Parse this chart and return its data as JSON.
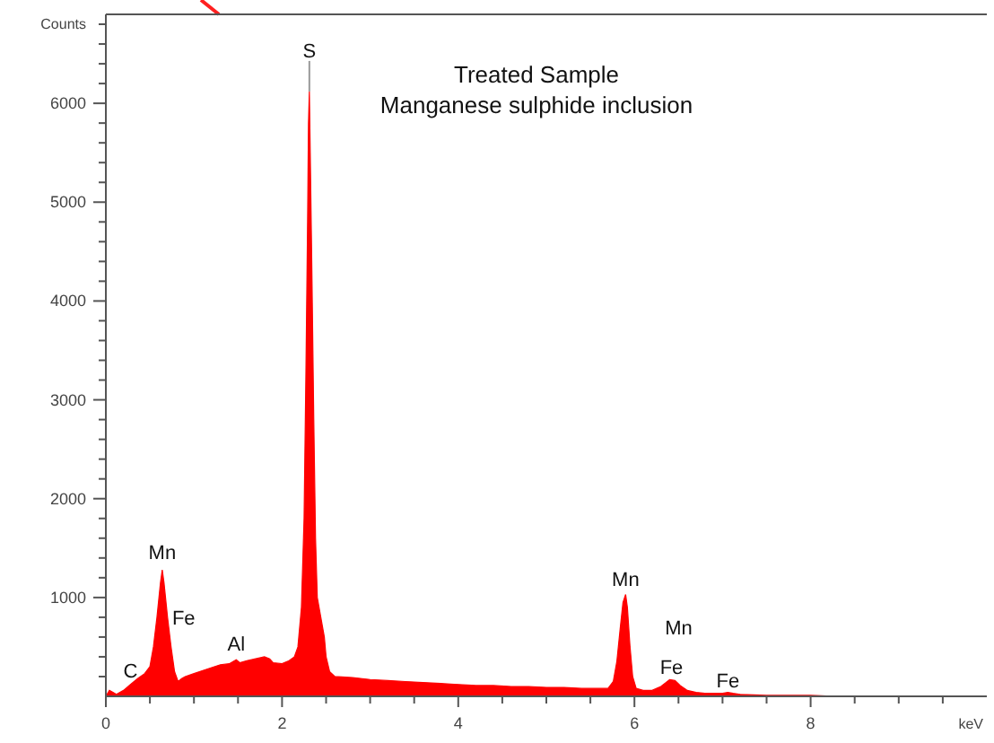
{
  "chart_data": {
    "type": "area",
    "title": "Treated Sample",
    "subtitle": "Manganese sulphide inclusion",
    "xlabel": "keV",
    "ylabel": "Counts",
    "xlim": [
      0,
      10
    ],
    "ylim": [
      0,
      6900
    ],
    "xticks": [
      0,
      {
        "value": 0.5,
        "label": null
      },
      {
        "value": 1,
        "label": null
      },
      {
        "value": 1.5,
        "label": null
      },
      2,
      {
        "value": 2.5,
        "label": null
      },
      {
        "value": 3,
        "label": null
      },
      {
        "value": 3.5,
        "label": null
      },
      4,
      {
        "value": 4.5,
        "label": null
      },
      {
        "value": 5,
        "label": null
      },
      {
        "value": 5.5,
        "label": null
      },
      6,
      {
        "value": 6.5,
        "label": null
      },
      {
        "value": 7,
        "label": null
      },
      {
        "value": 7.5,
        "label": null
      },
      8,
      {
        "value": 8.5,
        "label": null
      },
      {
        "value": 9,
        "label": null
      },
      {
        "value": 9.5,
        "label": null
      }
    ],
    "yticks": [
      {
        "value": 200,
        "label": null
      },
      {
        "value": 400,
        "label": null
      },
      {
        "value": 600,
        "label": null
      },
      {
        "value": 800,
        "label": null
      },
      1000,
      {
        "value": 1200,
        "label": null
      },
      {
        "value": 1400,
        "label": null
      },
      {
        "value": 1600,
        "label": null
      },
      {
        "value": 1800,
        "label": null
      },
      2000,
      {
        "value": 2200,
        "label": null
      },
      {
        "value": 2400,
        "label": null
      },
      {
        "value": 2600,
        "label": null
      },
      {
        "value": 2800,
        "label": null
      },
      3000,
      {
        "value": 3200,
        "label": null
      },
      {
        "value": 3400,
        "label": null
      },
      {
        "value": 3600,
        "label": null
      },
      {
        "value": 3800,
        "label": null
      },
      4000,
      {
        "value": 4200,
        "label": null
      },
      {
        "value": 4400,
        "label": null
      },
      {
        "value": 4600,
        "label": null
      },
      {
        "value": 4800,
        "label": null
      },
      5000,
      {
        "value": 5200,
        "label": null
      },
      {
        "value": 5400,
        "label": null
      },
      {
        "value": 5600,
        "label": null
      },
      {
        "value": 5800,
        "label": null
      },
      6000,
      {
        "value": 6200,
        "label": null
      },
      {
        "value": 6400,
        "label": null
      },
      {
        "value": 6600,
        "label": null
      },
      {
        "value": 6800,
        "label": null
      }
    ],
    "grid": false,
    "x": [
      0,
      0.04,
      0.08,
      0.12,
      0.2,
      0.28,
      0.36,
      0.44,
      0.5,
      0.54,
      0.58,
      0.62,
      0.64,
      0.66,
      0.7,
      0.74,
      0.78,
      0.82,
      0.86,
      0.9,
      1.0,
      1.1,
      1.2,
      1.3,
      1.4,
      1.48,
      1.52,
      1.6,
      1.7,
      1.8,
      1.86,
      1.9,
      2.0,
      2.08,
      2.14,
      2.18,
      2.22,
      2.25,
      2.27,
      2.29,
      2.3,
      2.31,
      2.32,
      2.34,
      2.36,
      2.38,
      2.4,
      2.44,
      2.48,
      2.5,
      2.54,
      2.6,
      2.8,
      3.0,
      3.2,
      3.4,
      3.6,
      3.8,
      4.0,
      4.2,
      4.4,
      4.6,
      4.8,
      5.0,
      5.2,
      5.4,
      5.6,
      5.7,
      5.76,
      5.8,
      5.84,
      5.87,
      5.9,
      5.92,
      5.95,
      5.98,
      6.02,
      6.1,
      6.2,
      6.3,
      6.36,
      6.4,
      6.46,
      6.52,
      6.6,
      6.7,
      6.8,
      6.9,
      7.0,
      7.06,
      7.12,
      7.2,
      7.5,
      8.0,
      8.3
    ],
    "series": [
      {
        "color": "#ff0000",
        "values": [
          0,
          60,
          40,
          20,
          60,
          120,
          180,
          230,
          300,
          500,
          800,
          1150,
          1280,
          1150,
          800,
          500,
          250,
          150,
          180,
          200,
          230,
          260,
          290,
          320,
          330,
          370,
          340,
          360,
          380,
          400,
          380,
          340,
          330,
          360,
          400,
          500,
          900,
          1800,
          3200,
          4800,
          5800,
          6120,
          5500,
          4200,
          2800,
          1600,
          1000,
          800,
          600,
          400,
          250,
          200,
          190,
          170,
          160,
          150,
          140,
          130,
          120,
          110,
          110,
          100,
          100,
          90,
          90,
          80,
          80,
          80,
          150,
          350,
          700,
          950,
          1030,
          900,
          500,
          200,
          80,
          60,
          60,
          100,
          140,
          170,
          160,
          110,
          60,
          40,
          30,
          30,
          30,
          40,
          30,
          20,
          10,
          10,
          0
        ]
      }
    ],
    "annotations": [
      {
        "text": "S",
        "x": 2.31,
        "y": 6120
      },
      {
        "text": "Mn",
        "x": 0.64,
        "y": 1280
      },
      {
        "text": "Fe",
        "x": 0.7,
        "y": 800
      },
      {
        "text": "Al",
        "x": 1.48,
        "y": 370
      },
      {
        "text": "C",
        "x": 0.28,
        "y": 120
      },
      {
        "text": "Mn",
        "x": 5.9,
        "y": 1030
      },
      {
        "text": "Mn",
        "x": 6.4,
        "y": 170
      },
      {
        "text": "Fe",
        "x": 6.4,
        "y": 170
      },
      {
        "text": "Fe",
        "x": 7.06,
        "y": 35
      }
    ]
  }
}
